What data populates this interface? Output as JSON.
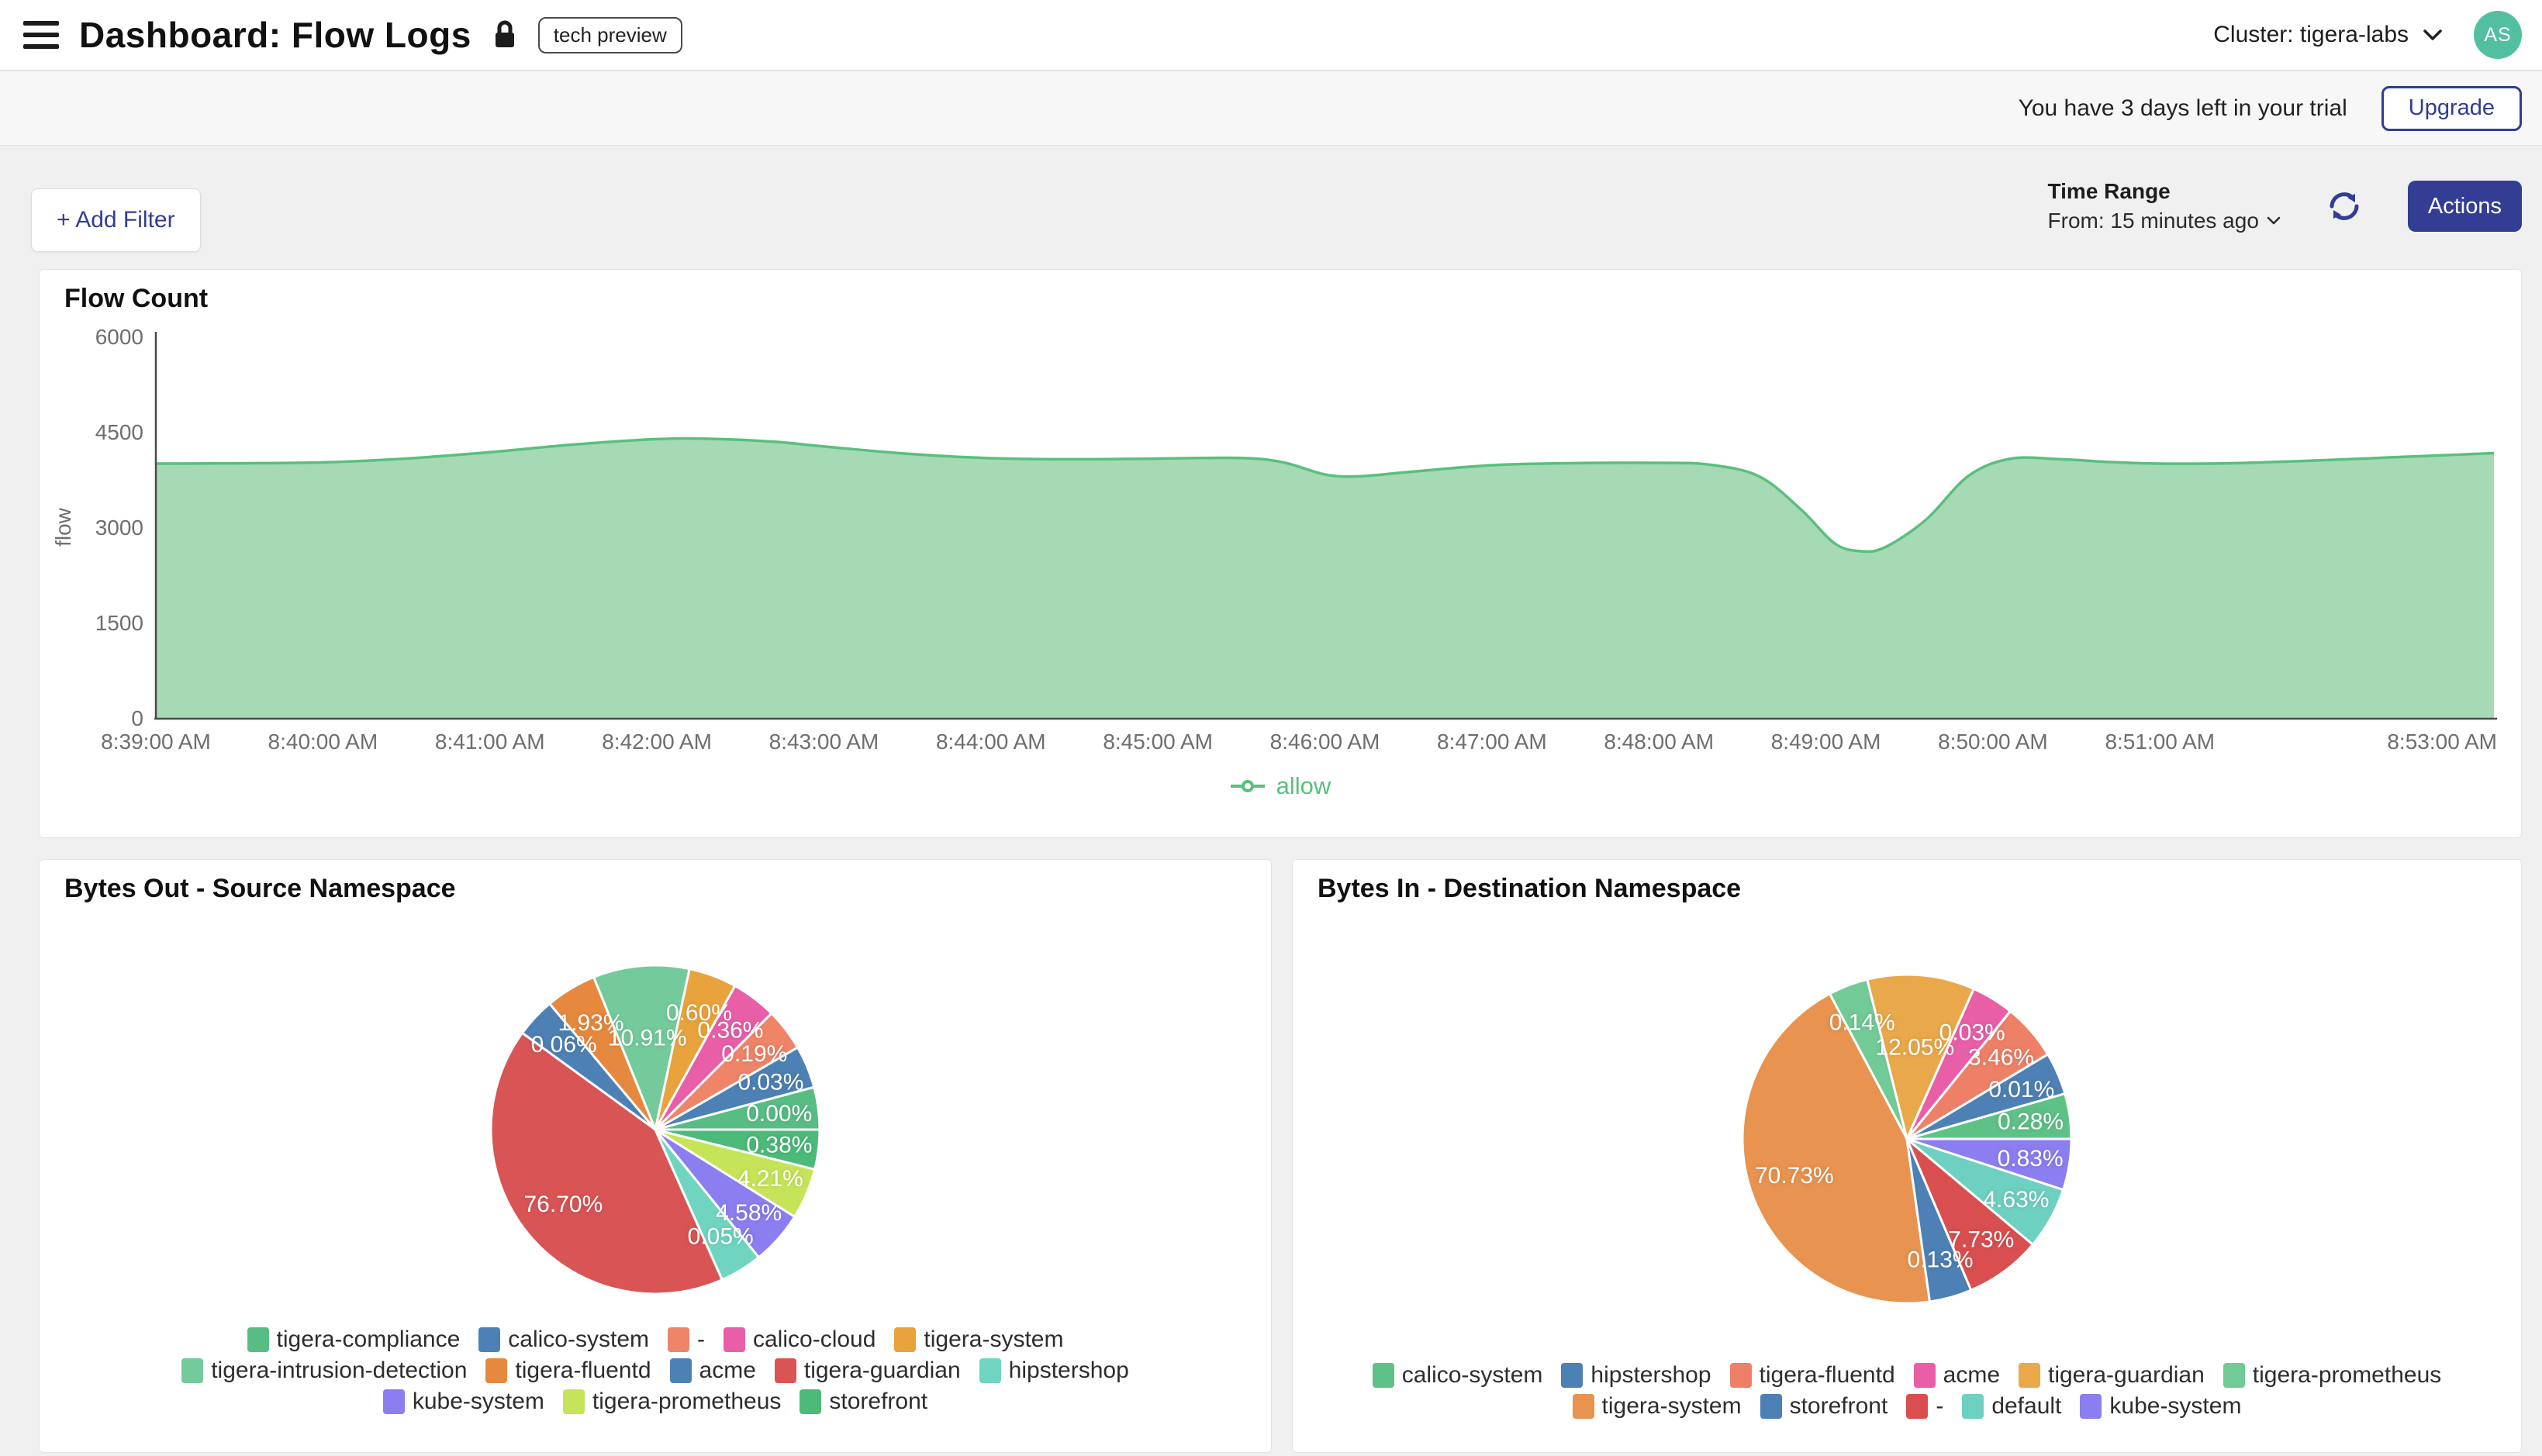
{
  "header": {
    "title": "Dashboard: Flow Logs",
    "badge": "tech preview",
    "cluster_label": "Cluster: tigera-labs",
    "avatar_initials": "AS"
  },
  "trial": {
    "message": "You have 3 days left in your trial",
    "upgrade_label": "Upgrade"
  },
  "toolbar": {
    "add_filter_label": "+ Add Filter",
    "time_range_title": "Time Range",
    "time_range_value": "From: 15 minutes ago",
    "actions_label": "Actions"
  },
  "colors": {
    "accent_navy": "#333d94",
    "avatar_green": "#52bfa0",
    "allow_green": "#57c17b",
    "area_fill": "#a6dab4",
    "area_line": "#5abf7f",
    "axis_text": "#6e6e6e",
    "axis_line": "#4a4a4a"
  },
  "chart_data": [
    {
      "type": "area",
      "title": "Flow Count",
      "ylabel": "flow",
      "ylim": [
        0,
        6000
      ],
      "yticks": [
        0,
        1500,
        3000,
        4500,
        6000
      ],
      "grid": false,
      "legend": [
        "allow"
      ],
      "legend_position": "bottom",
      "xticks": [
        {
          "t": 0,
          "label": "8:39:00 AM"
        },
        {
          "t": 1,
          "label": "8:40:00 AM"
        },
        {
          "t": 2,
          "label": "8:41:00 AM"
        },
        {
          "t": 3,
          "label": "8:42:00 AM"
        },
        {
          "t": 4,
          "label": "8:43:00 AM"
        },
        {
          "t": 5,
          "label": "8:44:00 AM"
        },
        {
          "t": 6,
          "label": "8:45:00 AM"
        },
        {
          "t": 7,
          "label": "8:46:00 AM"
        },
        {
          "t": 8,
          "label": "8:47:00 AM"
        },
        {
          "t": 9,
          "label": "8:48:00 AM"
        },
        {
          "t": 10,
          "label": "8:49:00 AM"
        },
        {
          "t": 11,
          "label": "8:50:00 AM"
        },
        {
          "t": 12,
          "label": "8:51:00 AM"
        },
        {
          "t": 14,
          "label": "8:53:00 AM"
        }
      ],
      "x_range_minutes": [
        0,
        14
      ],
      "series": [
        {
          "name": "allow",
          "color": "#5abf7f",
          "fill": "#a6dab4",
          "points": [
            [
              0,
              4000
            ],
            [
              0.5,
              4005
            ],
            [
              1,
              4020
            ],
            [
              1.5,
              4080
            ],
            [
              2,
              4180
            ],
            [
              2.5,
              4300
            ],
            [
              3,
              4385
            ],
            [
              3.3,
              4392
            ],
            [
              3.7,
              4345
            ],
            [
              4,
              4270
            ],
            [
              4.5,
              4155
            ],
            [
              5,
              4085
            ],
            [
              5.5,
              4068
            ],
            [
              6,
              4080
            ],
            [
              6.5,
              4088
            ],
            [
              6.75,
              4020
            ],
            [
              7,
              3830
            ],
            [
              7.2,
              3800
            ],
            [
              7.5,
              3868
            ],
            [
              8,
              3975
            ],
            [
              8.5,
              4008
            ],
            [
              9,
              4012
            ],
            [
              9.3,
              3985
            ],
            [
              9.6,
              3800
            ],
            [
              9.85,
              3280
            ],
            [
              10.05,
              2750
            ],
            [
              10.2,
              2625
            ],
            [
              10.35,
              2680
            ],
            [
              10.6,
              3120
            ],
            [
              10.85,
              3800
            ],
            [
              11.1,
              4075
            ],
            [
              11.4,
              4070
            ],
            [
              11.7,
              4025
            ],
            [
              12,
              4000
            ],
            [
              12.4,
              4005
            ],
            [
              12.9,
              4045
            ],
            [
              13.4,
              4100
            ],
            [
              14,
              4165
            ]
          ]
        }
      ]
    },
    {
      "type": "pie",
      "title": "Bytes Out - Source Namespace",
      "label_format": "percent",
      "legend_position": "bottom",
      "slices": [
        {
          "label": "tigera-compliance",
          "value_pct": 0.0,
          "color": "#58bd84",
          "sweep_deg": 15
        },
        {
          "label": "calico-system",
          "value_pct": 0.03,
          "color": "#4d80b4",
          "sweep_deg": 15
        },
        {
          "label": "-",
          "value_pct": 0.19,
          "color": "#ee8468",
          "sweep_deg": 15
        },
        {
          "label": "calico-cloud",
          "value_pct": 0.36,
          "color": "#e85fa8",
          "sweep_deg": 16
        },
        {
          "label": "tigera-system",
          "value_pct": 0.6,
          "color": "#e8a33d",
          "sweep_deg": 17
        },
        {
          "label": "tigera-intrusion-detection",
          "value_pct": 10.91,
          "color": "#74ca9b",
          "sweep_deg": 34
        },
        {
          "label": "tigera-fluentd",
          "value_pct": 1.93,
          "color": "#e7883f",
          "sweep_deg": 18
        },
        {
          "label": "acme",
          "value_pct": 0.06,
          "color": "#4d80b4",
          "sweep_deg": 14
        },
        {
          "label": "tigera-guardian",
          "value_pct": 76.7,
          "color": "#d95454",
          "sweep_deg": 150
        },
        {
          "label": "hipstershop",
          "value_pct": 0.05,
          "color": "#6fd5c0",
          "sweep_deg": 15
        },
        {
          "label": "kube-system",
          "value_pct": 4.58,
          "color": "#8b7ef0",
          "sweep_deg": 19
        },
        {
          "label": "tigera-prometheus",
          "value_pct": 4.21,
          "color": "#c6e459",
          "sweep_deg": 18
        },
        {
          "label": "storefront",
          "value_pct": 0.38,
          "color": "#4cba79",
          "sweep_deg": 14
        }
      ]
    },
    {
      "type": "pie",
      "title": "Bytes In - Destination Namespace",
      "label_format": "percent",
      "legend_position": "bottom",
      "slices": [
        {
          "label": "calico-system",
          "value_pct": 0.28,
          "color": "#5ec287",
          "sweep_deg": 16
        },
        {
          "label": "hipstershop",
          "value_pct": 0.01,
          "color": "#4d80b4",
          "sweep_deg": 15
        },
        {
          "label": "tigera-fluentd",
          "value_pct": 3.46,
          "color": "#ed8066",
          "sweep_deg": 20
        },
        {
          "label": "acme",
          "value_pct": 0.03,
          "color": "#e85fa8",
          "sweep_deg": 15
        },
        {
          "label": "tigera-guardian",
          "value_pct": 12.05,
          "color": "#e9a84a",
          "sweep_deg": 38
        },
        {
          "label": "tigera-prometheus",
          "value_pct": 0.14,
          "color": "#72ca97",
          "sweep_deg": 14
        },
        {
          "label": "tigera-system",
          "value_pct": 70.73,
          "color": "#e8934f",
          "sweep_deg": 160
        },
        {
          "label": "storefront",
          "value_pct": 0.13,
          "color": "#4d80b4",
          "sweep_deg": 15
        },
        {
          "label": "-",
          "value_pct": 7.73,
          "color": "#d94f4f",
          "sweep_deg": 27
        },
        {
          "label": "default",
          "value_pct": 4.63,
          "color": "#6ed0c0",
          "sweep_deg": 22
        },
        {
          "label": "kube-system",
          "value_pct": 0.83,
          "color": "#8b7ef0",
          "sweep_deg": 18
        }
      ]
    }
  ]
}
